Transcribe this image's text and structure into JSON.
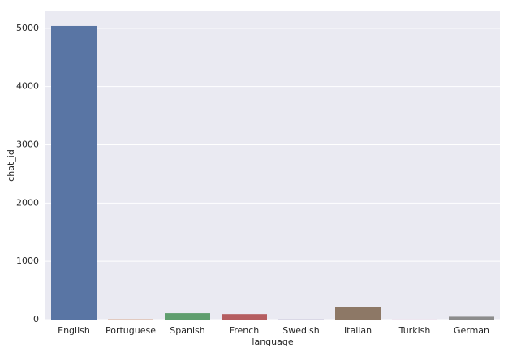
{
  "chart_data": {
    "type": "bar",
    "x_label": "language",
    "y_label": "chat_id",
    "categories": [
      "English",
      "Portuguese",
      "Spanish",
      "French",
      "Swedish",
      "Italian",
      "Turkish",
      "German"
    ],
    "values": [
      5040,
      5,
      110,
      95,
      3,
      210,
      2,
      50
    ],
    "colors": [
      "#5975a4",
      "#cc8963",
      "#5f9e6e",
      "#b55d60",
      "#857aab",
      "#8d7866",
      "#d095bf",
      "#8c8c8c"
    ],
    "ylim": [
      0,
      5290
    ],
    "yticks": [
      0,
      1000,
      2000,
      3000,
      4000,
      5000
    ],
    "grid": true
  }
}
